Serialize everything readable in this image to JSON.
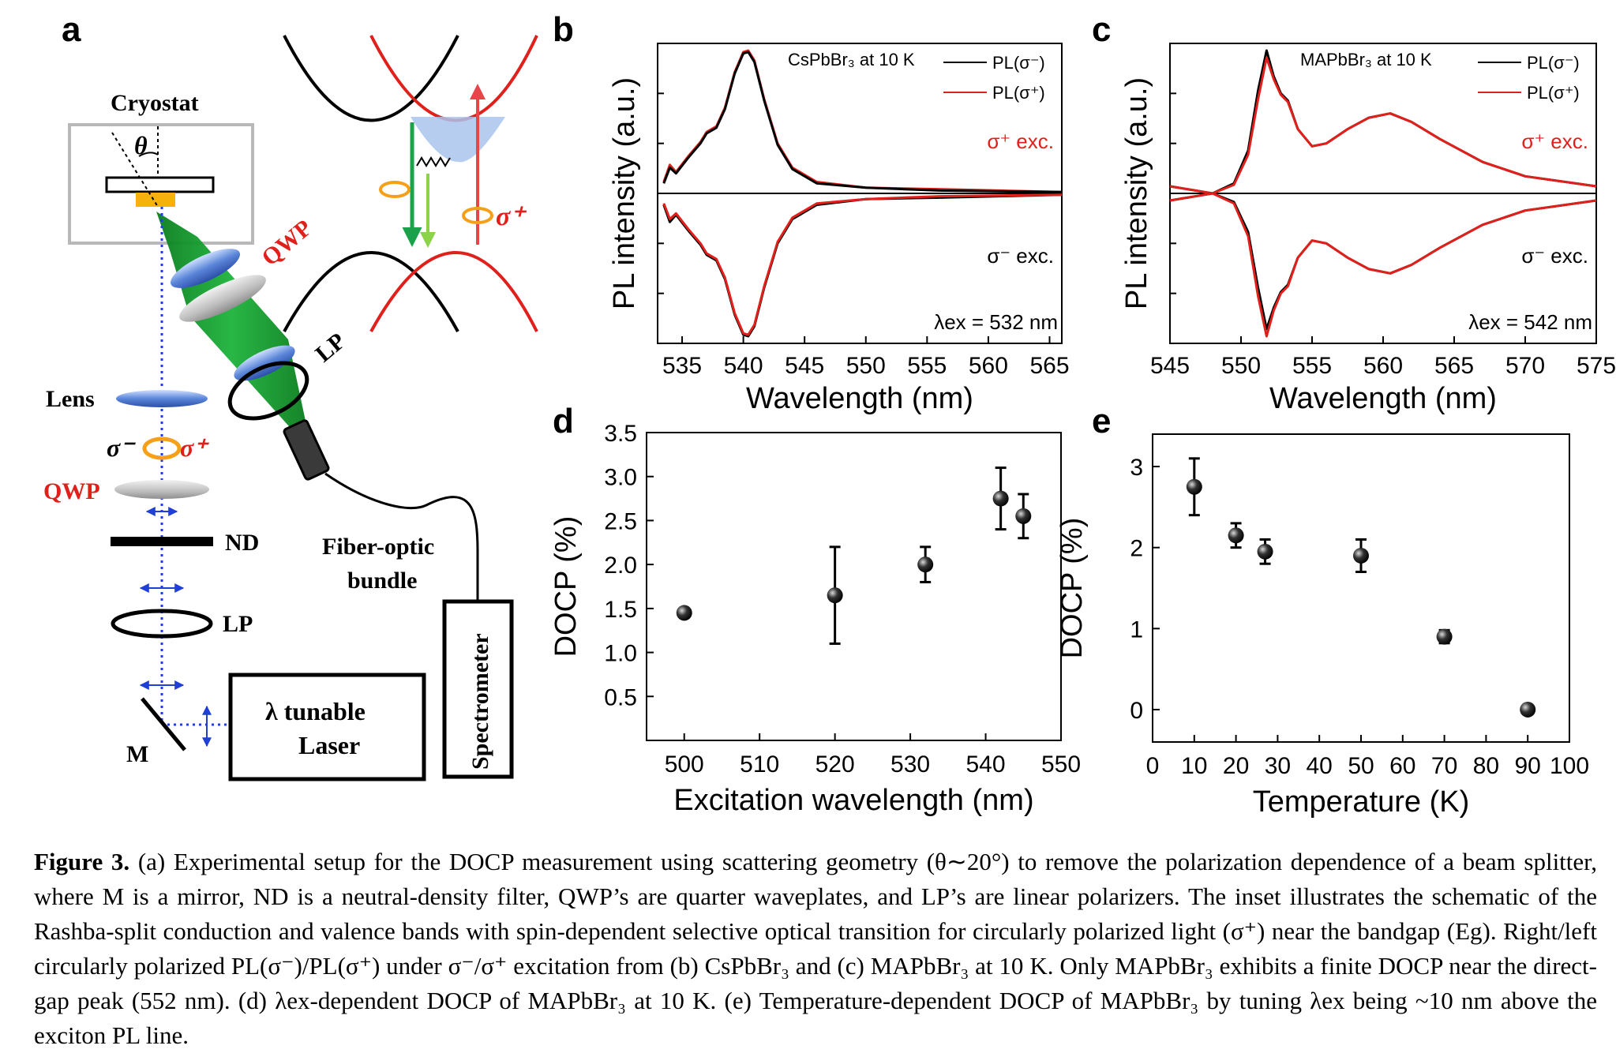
{
  "figure": {
    "panel_labels": [
      "a",
      "b",
      "c",
      "d",
      "e"
    ],
    "setup": {
      "cryostat": "Cryostat",
      "theta": "θ",
      "qwp_top": "QWP",
      "lp_top": "LP",
      "lens": "Lens",
      "sigma_minus": "σ⁻",
      "sigma_plus": "σ⁺",
      "qwp_bottom": "QWP",
      "nd": "ND",
      "lp_bottom": "LP",
      "mirror": "M",
      "laser_line1": "λ tunable",
      "laser_line2": "Laser",
      "fiber_line1": "Fiber-optic",
      "fiber_line2": "bundle",
      "spectrometer": "Spectrometer",
      "inset_sigma": "σ⁺"
    },
    "caption": {
      "figure_label": "Figure 3.",
      "text": "(a) Experimental setup for the DOCP measurement using scattering geometry (θ∼20°) to remove the polarization dependence of a beam splitter, where M is a mirror, ND is a neutral-density filter, QWP’s are quarter waveplates, and LP’s are linear polarizers. The inset illustrates the schematic of the Rashba-split conduction and valence bands with spin-dependent selective optical transition for circularly polarized light (σ⁺) near the bandgap (Eg). Right/left circularly polarized PL(σ⁻)/PL(σ⁺) under σ⁻/σ⁺ excitation from (b) CsPbBr₃ and (c) MAPbBr₃ at 10 K. Only MAPbBr₃ exhibits a finite DOCP near the direct-gap peak (552 nm). (d) λex-dependent DOCP of MAPbBr₃ at 10 K. (e) Temperature-dependent DOCP of MAPbBr₃ by tuning λex being ~10 nm above the exciton PL line."
    }
  },
  "chart_data": [
    {
      "panel": "b",
      "type": "line",
      "annotation": "CsPbBr₃ at 10 K",
      "xlabel": "Wavelength (nm)",
      "ylabel": "PL intensity (a.u.)",
      "xlim": [
        533,
        566
      ],
      "ylim": [
        -1.05,
        1.05
      ],
      "x_ticks": [
        535,
        540,
        545,
        550,
        555,
        560,
        565
      ],
      "legend": [
        "PL(σ⁻)",
        "PL(σ⁺)"
      ],
      "legend_position": "top-right",
      "label_upper": "σ⁺ exc.",
      "label_lower": "σ⁻ exc.",
      "excitation_label": "λex = 532 nm",
      "series": [
        {
          "name": "PL(σ⁺)",
          "color": "#e0201b",
          "x": [
            533.5,
            534.0,
            534.5,
            535.5,
            536.5,
            537.0,
            537.8,
            538.5,
            539.3,
            540.0,
            540.4,
            540.9,
            541.7,
            542.8,
            544.0,
            546.0,
            550.0,
            556.0,
            566.0
          ],
          "y": [
            0.08,
            0.2,
            0.15,
            0.26,
            0.36,
            0.43,
            0.47,
            0.6,
            0.85,
            0.99,
            1.0,
            0.93,
            0.66,
            0.35,
            0.18,
            0.08,
            0.04,
            0.03,
            0.01
          ]
        },
        {
          "name": "PL(σ⁻)",
          "color": "#000000",
          "x": [
            533.5,
            534.0,
            534.5,
            535.5,
            536.5,
            537.0,
            537.8,
            538.5,
            539.3,
            540.0,
            540.4,
            540.9,
            541.7,
            542.8,
            544.0,
            546.0,
            550.0,
            556.0,
            566.0
          ],
          "y": [
            0.07,
            0.18,
            0.14,
            0.25,
            0.35,
            0.42,
            0.46,
            0.59,
            0.84,
            0.98,
            0.99,
            0.92,
            0.65,
            0.34,
            0.17,
            0.07,
            0.04,
            0.02,
            0.01
          ]
        },
        {
          "name": "PL(σ⁻) σ⁻ exc.",
          "color": "#000000",
          "x": [
            533.5,
            534.0,
            534.5,
            535.5,
            536.5,
            537.0,
            537.8,
            538.5,
            539.3,
            540.0,
            540.4,
            540.9,
            541.7,
            542.8,
            544.0,
            546.0,
            550.0,
            556.0,
            566.0
          ],
          "y": [
            -0.08,
            -0.2,
            -0.15,
            -0.26,
            -0.36,
            -0.43,
            -0.47,
            -0.6,
            -0.85,
            -0.99,
            -1.0,
            -0.93,
            -0.66,
            -0.35,
            -0.18,
            -0.08,
            -0.04,
            -0.03,
            -0.01
          ]
        },
        {
          "name": "PL(σ⁺) σ⁻ exc.",
          "color": "#e0201b",
          "x": [
            533.5,
            534.0,
            534.5,
            535.5,
            536.5,
            537.0,
            537.8,
            538.5,
            539.3,
            540.0,
            540.4,
            540.9,
            541.7,
            542.8,
            544.0,
            546.0,
            550.0,
            556.0,
            566.0
          ],
          "y": [
            -0.07,
            -0.18,
            -0.14,
            -0.25,
            -0.35,
            -0.42,
            -0.46,
            -0.59,
            -0.84,
            -0.98,
            -0.99,
            -0.92,
            -0.65,
            -0.34,
            -0.17,
            -0.07,
            -0.04,
            -0.02,
            -0.01
          ]
        }
      ]
    },
    {
      "panel": "c",
      "type": "line",
      "annotation": "MAPbBr₃ at 10 K",
      "xlabel": "Wavelength (nm)",
      "ylabel": "PL intensity (a.u.)",
      "xlim": [
        545,
        575
      ],
      "ylim": [
        -1.05,
        1.05
      ],
      "x_ticks": [
        545,
        550,
        555,
        560,
        565,
        570,
        575
      ],
      "legend": [
        "PL(σ⁻)",
        "PL(σ⁺)"
      ],
      "legend_position": "top-right",
      "label_upper": "σ⁺ exc.",
      "label_lower": "σ⁻ exc.",
      "excitation_label": "λex = 542 nm",
      "series": [
        {
          "name": "PL(σ⁻)",
          "color": "#000000",
          "x": [
            545,
            548,
            549.5,
            550.5,
            551.2,
            551.8,
            552.3,
            552.8,
            553.3,
            554.0,
            555.0,
            556.0,
            557.5,
            559.0,
            560.5,
            562.0,
            564.0,
            567.0,
            570.0,
            575.0
          ],
          "y": [
            0.05,
            0.0,
            0.07,
            0.3,
            0.72,
            1.0,
            0.82,
            0.7,
            0.65,
            0.45,
            0.33,
            0.35,
            0.45,
            0.53,
            0.56,
            0.5,
            0.38,
            0.22,
            0.12,
            0.05
          ]
        },
        {
          "name": "PL(σ⁺)",
          "color": "#e0201b",
          "x": [
            545,
            548,
            549.5,
            550.5,
            551.2,
            551.8,
            552.3,
            552.8,
            553.3,
            554.0,
            555.0,
            556.0,
            557.5,
            559.0,
            560.5,
            562.0,
            564.0,
            567.0,
            570.0,
            575.0
          ],
          "y": [
            0.05,
            0.0,
            0.06,
            0.27,
            0.66,
            0.95,
            0.8,
            0.69,
            0.64,
            0.45,
            0.33,
            0.35,
            0.45,
            0.53,
            0.56,
            0.5,
            0.38,
            0.22,
            0.12,
            0.05
          ]
        },
        {
          "name": "PL(σ⁻) σ⁻ exc.",
          "color": "#000000",
          "x": [
            545,
            548,
            549.5,
            550.5,
            551.2,
            551.8,
            552.3,
            552.8,
            553.3,
            554.0,
            555.0,
            556.0,
            557.5,
            559.0,
            560.5,
            562.0,
            564.0,
            567.0,
            570.0,
            575.0
          ],
          "y": [
            -0.05,
            0.0,
            -0.06,
            -0.27,
            -0.66,
            -0.95,
            -0.8,
            -0.69,
            -0.64,
            -0.45,
            -0.33,
            -0.35,
            -0.45,
            -0.53,
            -0.56,
            -0.5,
            -0.38,
            -0.22,
            -0.12,
            -0.05
          ]
        },
        {
          "name": "PL(σ⁺) σ⁻ exc.",
          "color": "#e0201b",
          "x": [
            545,
            548,
            549.5,
            550.5,
            551.2,
            551.8,
            552.3,
            552.8,
            553.3,
            554.0,
            555.0,
            556.0,
            557.5,
            559.0,
            560.5,
            562.0,
            564.0,
            567.0,
            570.0,
            575.0
          ],
          "y": [
            -0.05,
            0.0,
            -0.07,
            -0.3,
            -0.72,
            -1.0,
            -0.82,
            -0.7,
            -0.65,
            -0.45,
            -0.33,
            -0.35,
            -0.45,
            -0.53,
            -0.56,
            -0.5,
            -0.38,
            -0.22,
            -0.12,
            -0.05
          ]
        }
      ]
    },
    {
      "panel": "d",
      "type": "scatter",
      "xlabel": "Excitation wavelength (nm)",
      "ylabel": "DOCP (%)",
      "xlim": [
        495,
        550
      ],
      "ylim": [
        0.0,
        3.5
      ],
      "x_ticks": [
        500,
        510,
        520,
        530,
        540,
        550
      ],
      "y_ticks": [
        0.5,
        1.0,
        1.5,
        2.0,
        2.5,
        3.0,
        3.5
      ],
      "y_tick_labels": [
        "0.5",
        "1.0",
        "1.5",
        "2.0",
        "2.5",
        "3.0",
        "3.5"
      ],
      "x": [
        500,
        520,
        532,
        542,
        545
      ],
      "y": [
        1.45,
        1.65,
        2.0,
        2.75,
        2.55
      ],
      "error": [
        0.0,
        0.55,
        0.2,
        0.35,
        0.25
      ]
    },
    {
      "panel": "e",
      "type": "scatter",
      "xlabel": "Temperature (K)",
      "ylabel": "DOCP (%)",
      "xlim": [
        0,
        100
      ],
      "ylim": [
        -0.4,
        3.4
      ],
      "x_ticks": [
        0,
        10,
        20,
        30,
        40,
        50,
        60,
        70,
        80,
        90,
        100
      ],
      "y_ticks": [
        0,
        1,
        2,
        3
      ],
      "y_tick_labels": [
        "0",
        "1",
        "2",
        "3"
      ],
      "x": [
        10,
        20,
        27,
        50,
        70,
        90
      ],
      "y": [
        2.75,
        2.15,
        1.95,
        1.9,
        0.9,
        0.0
      ],
      "error": [
        0.35,
        0.15,
        0.15,
        0.2,
        0.08,
        0.0
      ]
    }
  ]
}
